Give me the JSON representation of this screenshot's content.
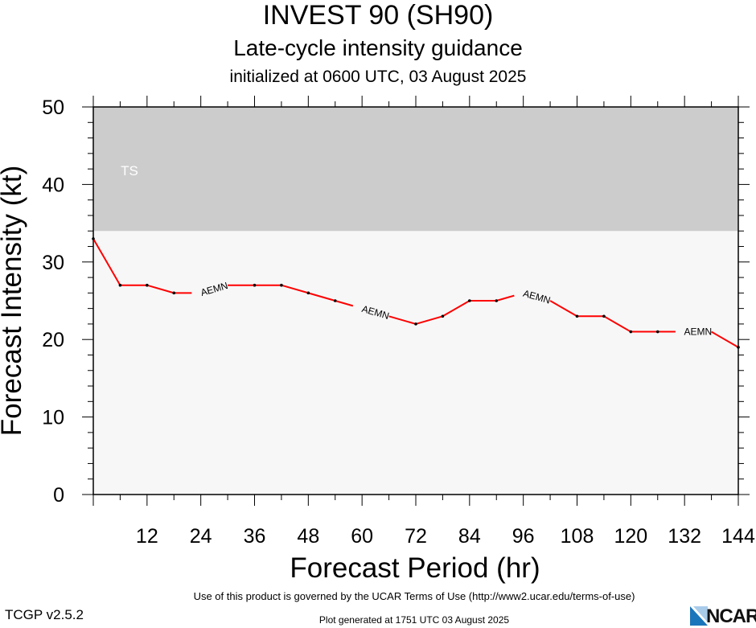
{
  "header": {
    "title": "INVEST 90 (SH90)",
    "subtitle": "Late-cycle intensity guidance",
    "init_line": "initialized at 0600 UTC, 03 August 2025"
  },
  "chart_data": {
    "type": "line",
    "xlabel": "Forecast Period (hr)",
    "ylabel": "Forecast Intensity (kt)",
    "xlim": [
      0,
      144
    ],
    "ylim": [
      0,
      50
    ],
    "x_ticks": [
      "12",
      "24",
      "36",
      "48",
      "60",
      "72",
      "84",
      "96",
      "108",
      "120",
      "132",
      "144"
    ],
    "y_ticks": [
      "0",
      "10",
      "20",
      "30",
      "40",
      "50"
    ],
    "bands": [
      {
        "label": "TS",
        "from": 34,
        "to": 50,
        "color": "#cccccc"
      }
    ],
    "plot_background": "#f7f7f7",
    "series": [
      {
        "name": "AEMN",
        "color": "#ff0000",
        "x": [
          0,
          6,
          12,
          18,
          24,
          30,
          36,
          42,
          48,
          54,
          60,
          66,
          72,
          78,
          84,
          90,
          96,
          102,
          108,
          114,
          120,
          126,
          132,
          138,
          144
        ],
        "y": [
          33,
          27,
          27,
          26,
          26,
          27,
          27,
          27,
          26,
          25,
          24,
          23,
          22,
          23,
          25,
          25,
          26,
          25,
          23,
          23,
          21,
          21,
          21,
          21,
          19
        ]
      }
    ],
    "line_label_hours": [
      24,
      60,
      96,
      132
    ]
  },
  "footer": {
    "terms": "Use of this product is governed by the UCAR Terms of Use (http://www2.ucar.edu/terms-of-use)",
    "version": "TCGP v2.5.2",
    "generated": "Plot generated at 1751 UTC   03 August 2025",
    "logo_text": "NCAR"
  }
}
